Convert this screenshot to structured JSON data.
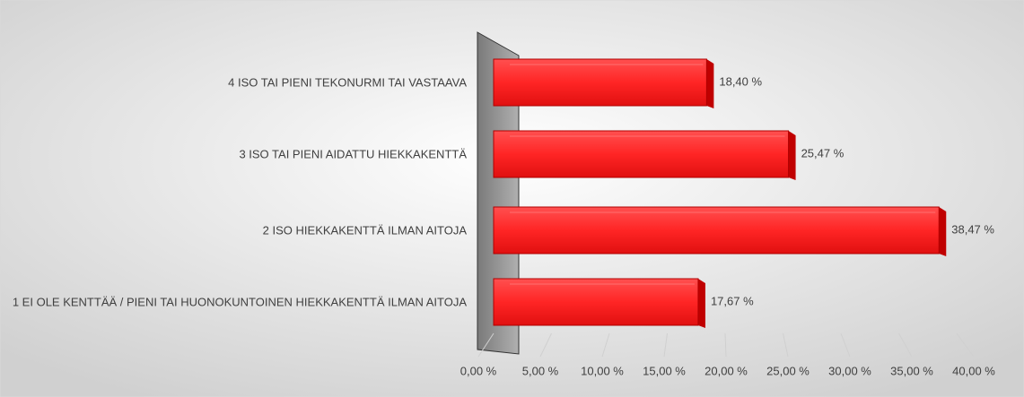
{
  "chart_data": {
    "type": "bar",
    "orientation": "horizontal",
    "categories": [
      "4 ISO TAI PIENI TEKONURMI TAI VASTAAVA",
      "3 ISO TAI PIENI AIDATTU HIEKKAKENTTÄ",
      "2 ISO HIEKKAKENTTÄ ILMAN AITOJA",
      "1 EI OLE KENTTÄÄ / PIENI TAI HUONOKUNTOINEN HIEKKAKENTTÄ ILMAN AITOJA"
    ],
    "values": [
      18.4,
      25.47,
      38.47,
      17.67
    ],
    "value_labels": [
      "18,40 %",
      "25,47 %",
      "38,47 %",
      "17,67 %"
    ],
    "color": "#ff2525",
    "xlim": [
      0,
      40
    ],
    "xticks": [
      {
        "value": 0,
        "label": "0,00 %"
      },
      {
        "value": 5,
        "label": "5,00 %"
      },
      {
        "value": 10,
        "label": "10,00 %"
      },
      {
        "value": 15,
        "label": "15,00 %"
      },
      {
        "value": 20,
        "label": "20,00 %"
      },
      {
        "value": 25,
        "label": "25,00 %"
      },
      {
        "value": 30,
        "label": "30,00 %"
      },
      {
        "value": 35,
        "label": "35,00 %"
      },
      {
        "value": 40,
        "label": "40,00 %"
      }
    ],
    "grid": true
  }
}
